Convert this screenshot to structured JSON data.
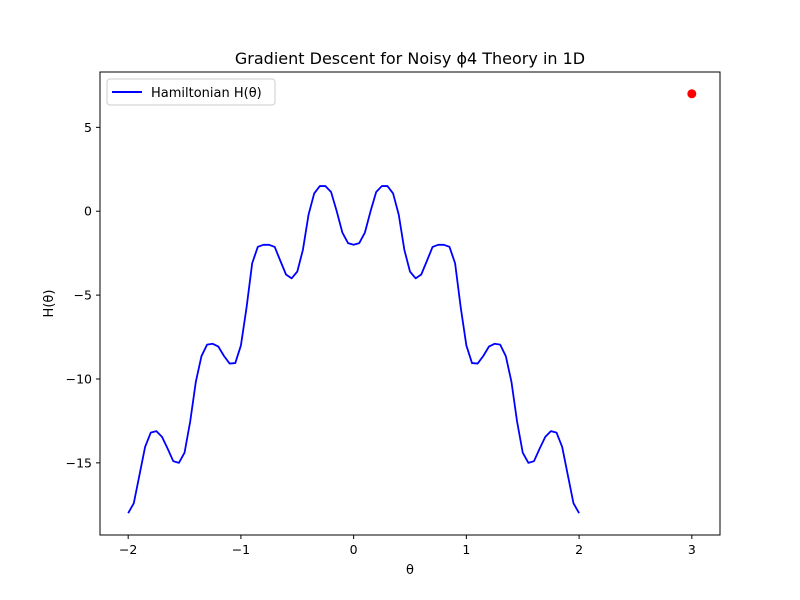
{
  "chart_data": {
    "type": "line",
    "title": "Gradient Descent for Noisy ϕ4 Theory in 1D",
    "xlabel": "θ",
    "ylabel": "H(θ)",
    "xlim": [
      -2.25,
      3.25
    ],
    "ylim": [
      -19.3,
      8.3
    ],
    "xticks": [
      -2,
      -1,
      0,
      1,
      2,
      3
    ],
    "xtick_labels": [
      "−2",
      "−1",
      "0",
      "1",
      "2",
      "3"
    ],
    "yticks": [
      5,
      0,
      -5,
      -10,
      -15
    ],
    "ytick_labels": [
      "5",
      "0",
      "−5",
      "−10",
      "−15"
    ],
    "grid": false,
    "legend_position": "top-left",
    "series": [
      {
        "name": "Hamiltonian H(θ)",
        "color": "#0000ff",
        "x": [
          -2.0,
          -1.95,
          -1.9,
          -1.85,
          -1.8,
          -1.75,
          -1.7,
          -1.65,
          -1.6,
          -1.55,
          -1.5,
          -1.45,
          -1.4,
          -1.35,
          -1.3,
          -1.25,
          -1.2,
          -1.15,
          -1.1,
          -1.05,
          -1.0,
          -0.95,
          -0.9,
          -0.85,
          -0.8,
          -0.75,
          -0.7,
          -0.65,
          -0.6,
          -0.55,
          -0.5,
          -0.45,
          -0.4,
          -0.35,
          -0.3,
          -0.25,
          -0.2,
          -0.15,
          -0.1,
          -0.05,
          0.0,
          0.05,
          0.1,
          0.15,
          0.2,
          0.25,
          0.3,
          0.35,
          0.4,
          0.45,
          0.5,
          0.55,
          0.6,
          0.65,
          0.7,
          0.75,
          0.8,
          0.85,
          0.9,
          0.95,
          1.0,
          1.05,
          1.1,
          1.15,
          1.2,
          1.25,
          1.3,
          1.35,
          1.4,
          1.45,
          1.5,
          1.55,
          1.6,
          1.65,
          1.7,
          1.75,
          1.8,
          1.85,
          1.9,
          1.95,
          2.0
        ],
        "y": [
          -18.0,
          -17.4,
          -15.73,
          -14.05,
          -13.2,
          -13.11,
          -13.45,
          -14.15,
          -14.9,
          -15.0,
          -14.39,
          -12.54,
          -10.17,
          -8.64,
          -7.95,
          -7.9,
          -8.07,
          -8.63,
          -9.08,
          -9.05,
          -8.0,
          -5.74,
          -3.1,
          -2.12,
          -2.0,
          -2.0,
          -2.13,
          -2.96,
          -3.77,
          -4.0,
          -3.6,
          -2.3,
          -0.2,
          1.06,
          1.5,
          1.5,
          1.15,
          0.0,
          -1.27,
          -1.9,
          -2.0,
          -1.9,
          -1.27,
          0.0,
          1.15,
          1.5,
          1.5,
          1.06,
          -0.2,
          -2.3,
          -3.6,
          -4.0,
          -3.77,
          -2.96,
          -2.13,
          -2.0,
          -2.0,
          -2.12,
          -3.1,
          -5.74,
          -8.0,
          -9.05,
          -9.08,
          -8.63,
          -8.07,
          -7.9,
          -7.95,
          -8.64,
          -10.17,
          -12.54,
          -14.39,
          -15.0,
          -14.9,
          -14.15,
          -13.45,
          -13.11,
          -13.2,
          -14.05,
          -15.73,
          -17.4,
          -18.0
        ]
      },
      {
        "type": "scatter",
        "color": "#ff0000",
        "x": [
          3.0
        ],
        "y": [
          7.0
        ]
      }
    ]
  }
}
